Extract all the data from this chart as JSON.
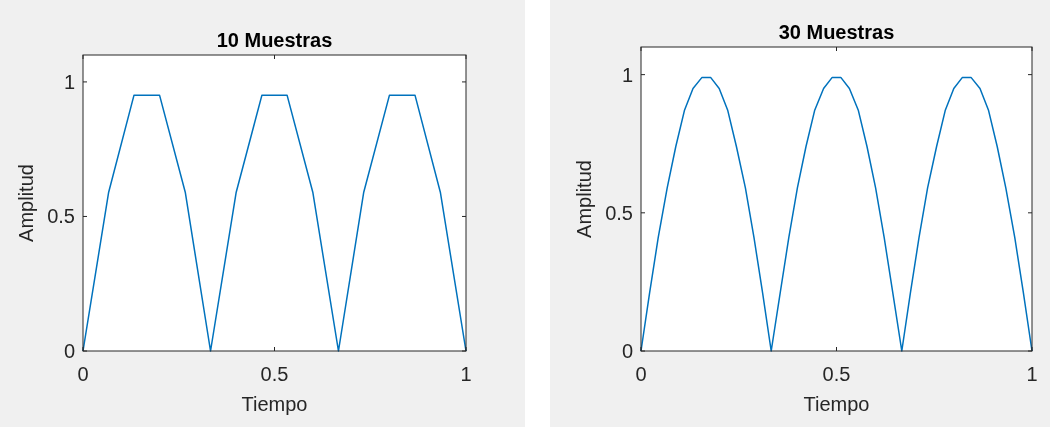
{
  "chart_data": [
    {
      "type": "line",
      "title": "10 Muestras",
      "xlabel": "Tiempo",
      "ylabel": "Amplitud",
      "xlim": [
        0,
        1
      ],
      "ylim": [
        0,
        1.1
      ],
      "xticks": [
        0,
        0.5,
        1
      ],
      "yticks": [
        0,
        0.5,
        1
      ],
      "grid": false,
      "x": [
        0,
        0.067,
        0.133,
        0.2,
        0.267,
        0.333,
        0.4,
        0.467,
        0.533,
        0.6,
        0.667,
        0.733,
        0.8,
        0.867,
        0.933,
        1
      ],
      "series": [
        {
          "color": "#0072bd",
          "values": [
            0,
            0.59,
            0.95,
            0.95,
            0.59,
            0,
            0.59,
            0.95,
            0.95,
            0.59,
            0,
            0.59,
            0.95,
            0.95,
            0.59,
            0
          ]
        }
      ]
    },
    {
      "type": "line",
      "title": "30 Muestras",
      "xlabel": "Tiempo",
      "ylabel": "Amplitud",
      "xlim": [
        0,
        1
      ],
      "ylim": [
        0,
        1.1
      ],
      "xticks": [
        0,
        0.5,
        1
      ],
      "yticks": [
        0,
        0.5,
        1
      ],
      "grid": false,
      "x": [
        0,
        0.022,
        0.044,
        0.067,
        0.089,
        0.111,
        0.133,
        0.156,
        0.178,
        0.2,
        0.222,
        0.244,
        0.267,
        0.289,
        0.311,
        0.333,
        0.356,
        0.378,
        0.4,
        0.422,
        0.444,
        0.467,
        0.489,
        0.511,
        0.533,
        0.556,
        0.578,
        0.6,
        0.622,
        0.644,
        0.667,
        0.689,
        0.711,
        0.733,
        0.756,
        0.778,
        0.8,
        0.822,
        0.844,
        0.867,
        0.889,
        0.911,
        0.933,
        0.956,
        0.978,
        1
      ],
      "series": [
        {
          "color": "#0072bd",
          "values": [
            0,
            0.21,
            0.41,
            0.59,
            0.74,
            0.87,
            0.95,
            0.99,
            0.99,
            0.95,
            0.87,
            0.74,
            0.59,
            0.41,
            0.21,
            0,
            0.21,
            0.41,
            0.59,
            0.74,
            0.87,
            0.95,
            0.99,
            0.99,
            0.95,
            0.87,
            0.74,
            0.59,
            0.41,
            0.21,
            0,
            0.21,
            0.41,
            0.59,
            0.74,
            0.87,
            0.95,
            0.99,
            0.99,
            0.95,
            0.87,
            0.74,
            0.59,
            0.41,
            0.21,
            0
          ]
        }
      ]
    }
  ]
}
